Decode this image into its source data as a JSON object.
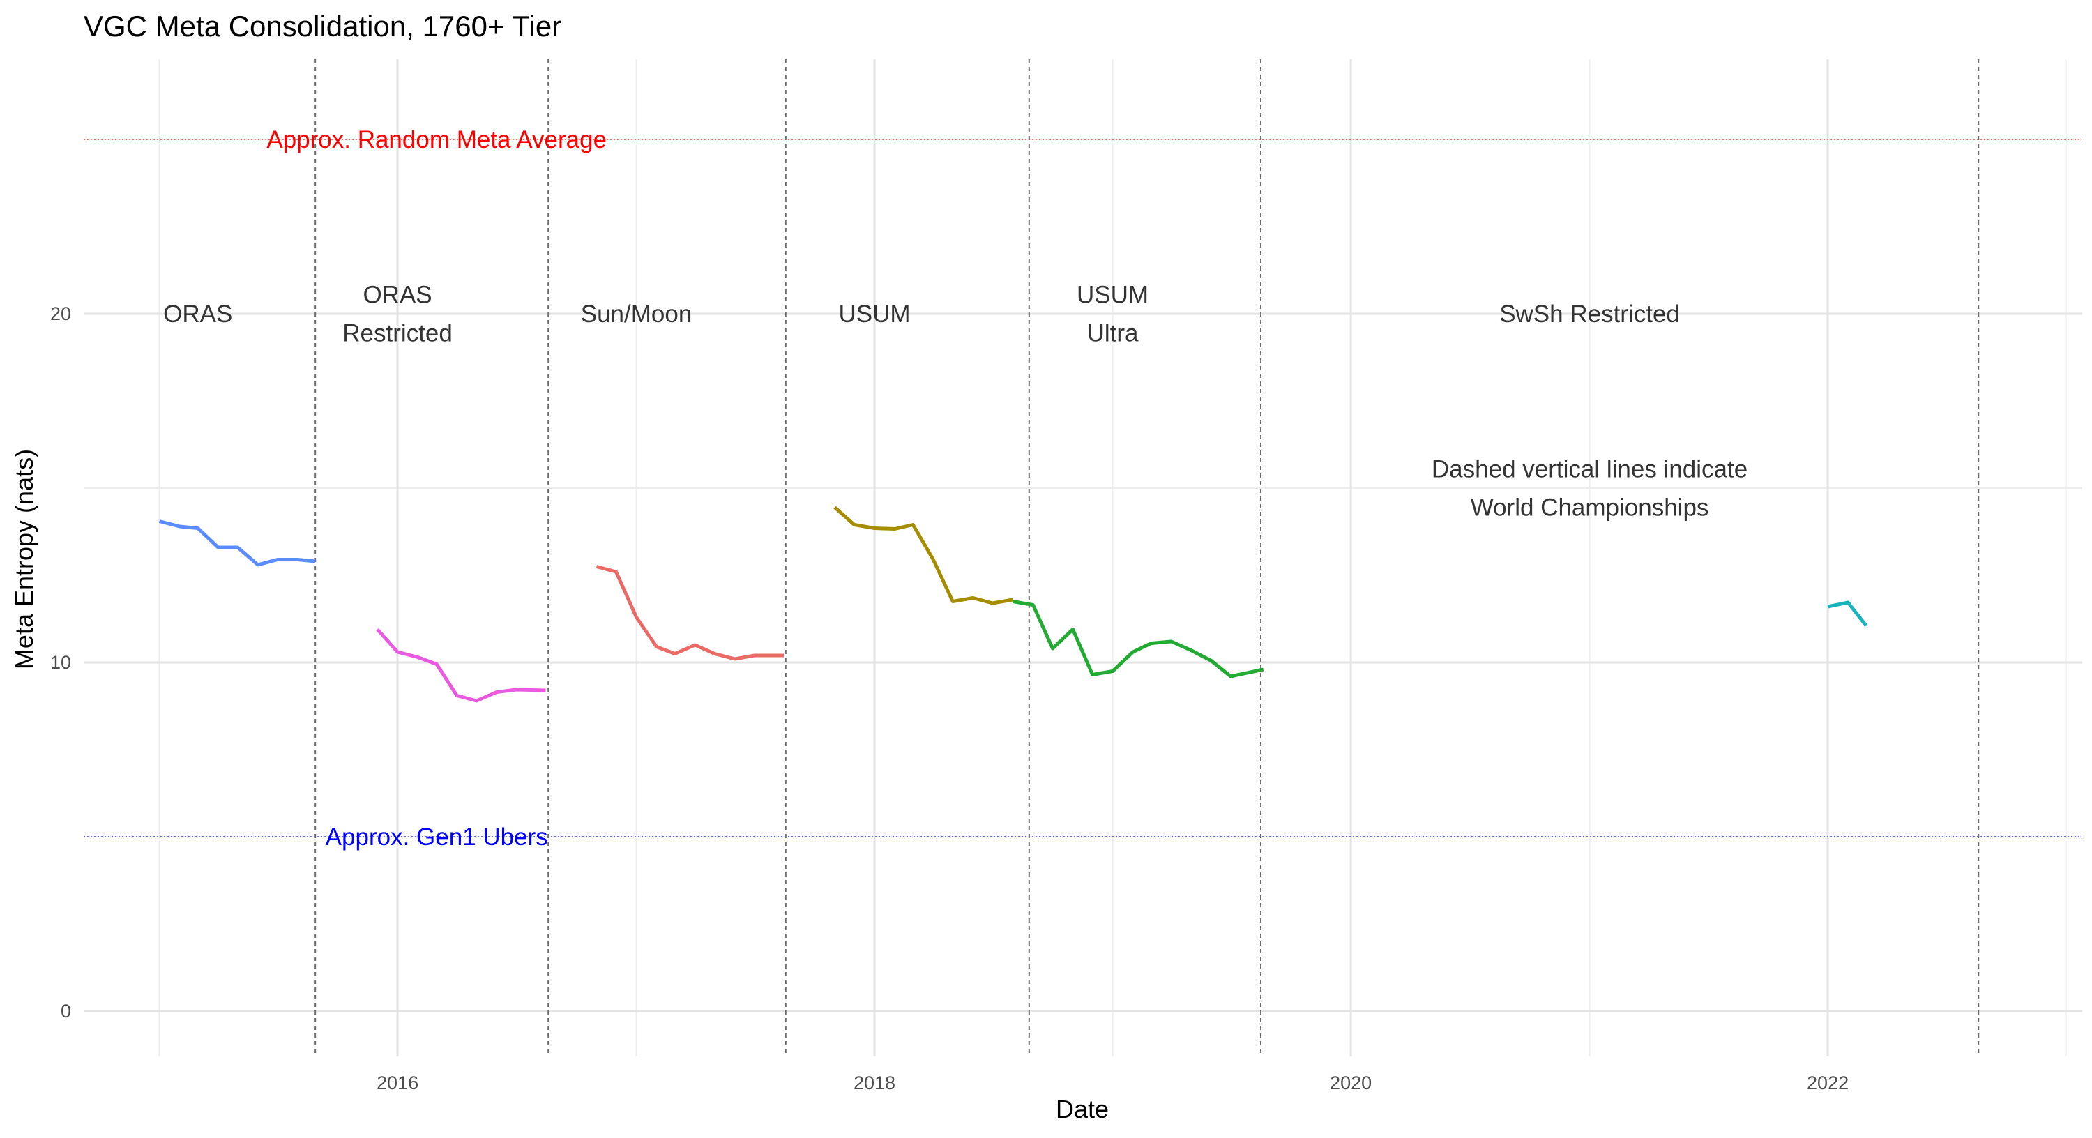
{
  "chart_data": {
    "type": "line",
    "title": "VGC Meta Consolidation, 1760+ Tier",
    "xlabel": "Date",
    "ylabel": "Meta Entropy (nats)",
    "xlim": [
      "2014-09-07",
      "2023-01-26"
    ],
    "ylim": [
      -1.3,
      27.3
    ],
    "x_ticks": [
      {
        "date": "2016-01-01",
        "label": "2016"
      },
      {
        "date": "2018-01-01",
        "label": "2018"
      },
      {
        "date": "2020-01-01",
        "label": "2020"
      },
      {
        "date": "2022-01-01",
        "label": "2022"
      }
    ],
    "y_ticks": [
      0,
      10,
      20
    ],
    "grid": true,
    "legend": "none",
    "series": [
      {
        "color": "#5b8cff",
        "points": [
          [
            "2015-01-01",
            14.05
          ],
          [
            "2015-02-01",
            13.9
          ],
          [
            "2015-03-01",
            13.85
          ],
          [
            "2015-04-01",
            13.3
          ],
          [
            "2015-05-01",
            13.3
          ],
          [
            "2015-06-01",
            12.8
          ],
          [
            "2015-07-01",
            12.95
          ],
          [
            "2015-08-01",
            12.95
          ],
          [
            "2015-08-28",
            12.9
          ]
        ]
      },
      {
        "color": "#e85ae0",
        "points": [
          [
            "2015-12-01",
            10.95
          ],
          [
            "2016-01-01",
            10.3
          ],
          [
            "2016-02-01",
            10.15
          ],
          [
            "2016-03-01",
            9.95
          ],
          [
            "2016-04-01",
            9.05
          ],
          [
            "2016-05-01",
            8.9
          ],
          [
            "2016-06-01",
            9.15
          ],
          [
            "2016-07-01",
            9.22
          ],
          [
            "2016-08-15",
            9.2
          ]
        ]
      },
      {
        "color": "#ea6a66",
        "points": [
          [
            "2016-11-01",
            12.75
          ],
          [
            "2016-12-01",
            12.6
          ],
          [
            "2017-01-01",
            11.3
          ],
          [
            "2017-02-01",
            10.45
          ],
          [
            "2017-03-01",
            10.25
          ],
          [
            "2017-04-01",
            10.5
          ],
          [
            "2017-05-01",
            10.25
          ],
          [
            "2017-06-01",
            10.1
          ],
          [
            "2017-07-01",
            10.2
          ],
          [
            "2017-08-15",
            10.2
          ]
        ]
      },
      {
        "color": "#a58c00",
        "points": [
          [
            "2017-11-01",
            14.45
          ],
          [
            "2017-12-01",
            13.95
          ],
          [
            "2018-01-01",
            13.85
          ],
          [
            "2018-02-01",
            13.83
          ],
          [
            "2018-03-01",
            13.95
          ],
          [
            "2018-04-01",
            12.95
          ],
          [
            "2018-05-01",
            11.75
          ],
          [
            "2018-06-01",
            11.85
          ],
          [
            "2018-07-01",
            11.7
          ],
          [
            "2018-08-01",
            11.8
          ]
        ]
      },
      {
        "color": "#22aa33",
        "points": [
          [
            "2018-08-01",
            11.75
          ],
          [
            "2018-09-01",
            11.65
          ],
          [
            "2018-10-01",
            10.4
          ],
          [
            "2018-11-01",
            10.95
          ],
          [
            "2018-12-01",
            9.65
          ],
          [
            "2019-01-01",
            9.75
          ],
          [
            "2019-02-01",
            10.3
          ],
          [
            "2019-03-01",
            10.55
          ],
          [
            "2019-04-01",
            10.6
          ],
          [
            "2019-05-01",
            10.35
          ],
          [
            "2019-06-01",
            10.05
          ],
          [
            "2019-07-01",
            9.6
          ],
          [
            "2019-08-20",
            9.8
          ]
        ]
      },
      {
        "color": "#1ab3bb",
        "points": [
          [
            "2022-01-01",
            11.6
          ],
          [
            "2022-02-01",
            11.72
          ],
          [
            "2022-03-01",
            11.05
          ]
        ]
      }
    ],
    "world_championships": [
      "2015-08-28",
      "2016-08-19",
      "2017-08-18",
      "2018-08-26",
      "2019-08-16",
      "2022-08-20"
    ],
    "reference_lines": [
      {
        "y": 25,
        "color": "#ff0000",
        "label": "Approx. Random Meta Average",
        "label_at": [
          "2016-03-01",
          25
        ]
      },
      {
        "y": 5,
        "color": "#0000ff",
        "label": "Approx. Gen1 Ubers",
        "label_at": [
          "2016-03-01",
          5
        ]
      }
    ],
    "era_labels": [
      {
        "lines": [
          "ORAS"
        ],
        "at": [
          "2015-03-01",
          20
        ]
      },
      {
        "lines": [
          "ORAS",
          "Restricted"
        ],
        "at": [
          "2016-01-01",
          20
        ]
      },
      {
        "lines": [
          "Sun/Moon"
        ],
        "at": [
          "2017-01-01",
          20
        ]
      },
      {
        "lines": [
          "USUM"
        ],
        "at": [
          "2018-01-01",
          20
        ]
      },
      {
        "lines": [
          "USUM",
          "Ultra"
        ],
        "at": [
          "2019-01-01",
          20
        ]
      },
      {
        "lines": [
          "SwSh Restricted"
        ],
        "at": [
          "2021-01-01",
          20
        ]
      }
    ],
    "note": {
      "lines": [
        "Dashed vertical lines indicate",
        "World Championships"
      ],
      "at": [
        "2021-01-01",
        15
      ]
    }
  }
}
